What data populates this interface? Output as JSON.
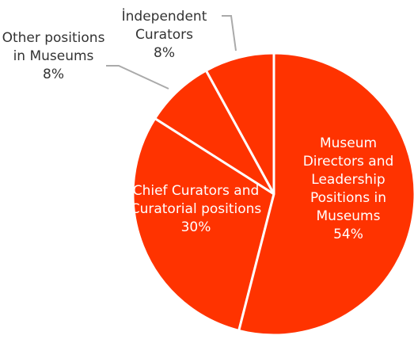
{
  "chart_data": {
    "type": "pie",
    "categories": [
      "Museum Directors and Leadership Positions in Museums",
      "Chief Curators and Curatorial positions",
      "Other positions in Museums",
      "İndependent Curators"
    ],
    "values": [
      54,
      30,
      8,
      8
    ],
    "value_labels": [
      "54%",
      "30%",
      "8%",
      "8%"
    ],
    "color": "#ff3300"
  }
}
